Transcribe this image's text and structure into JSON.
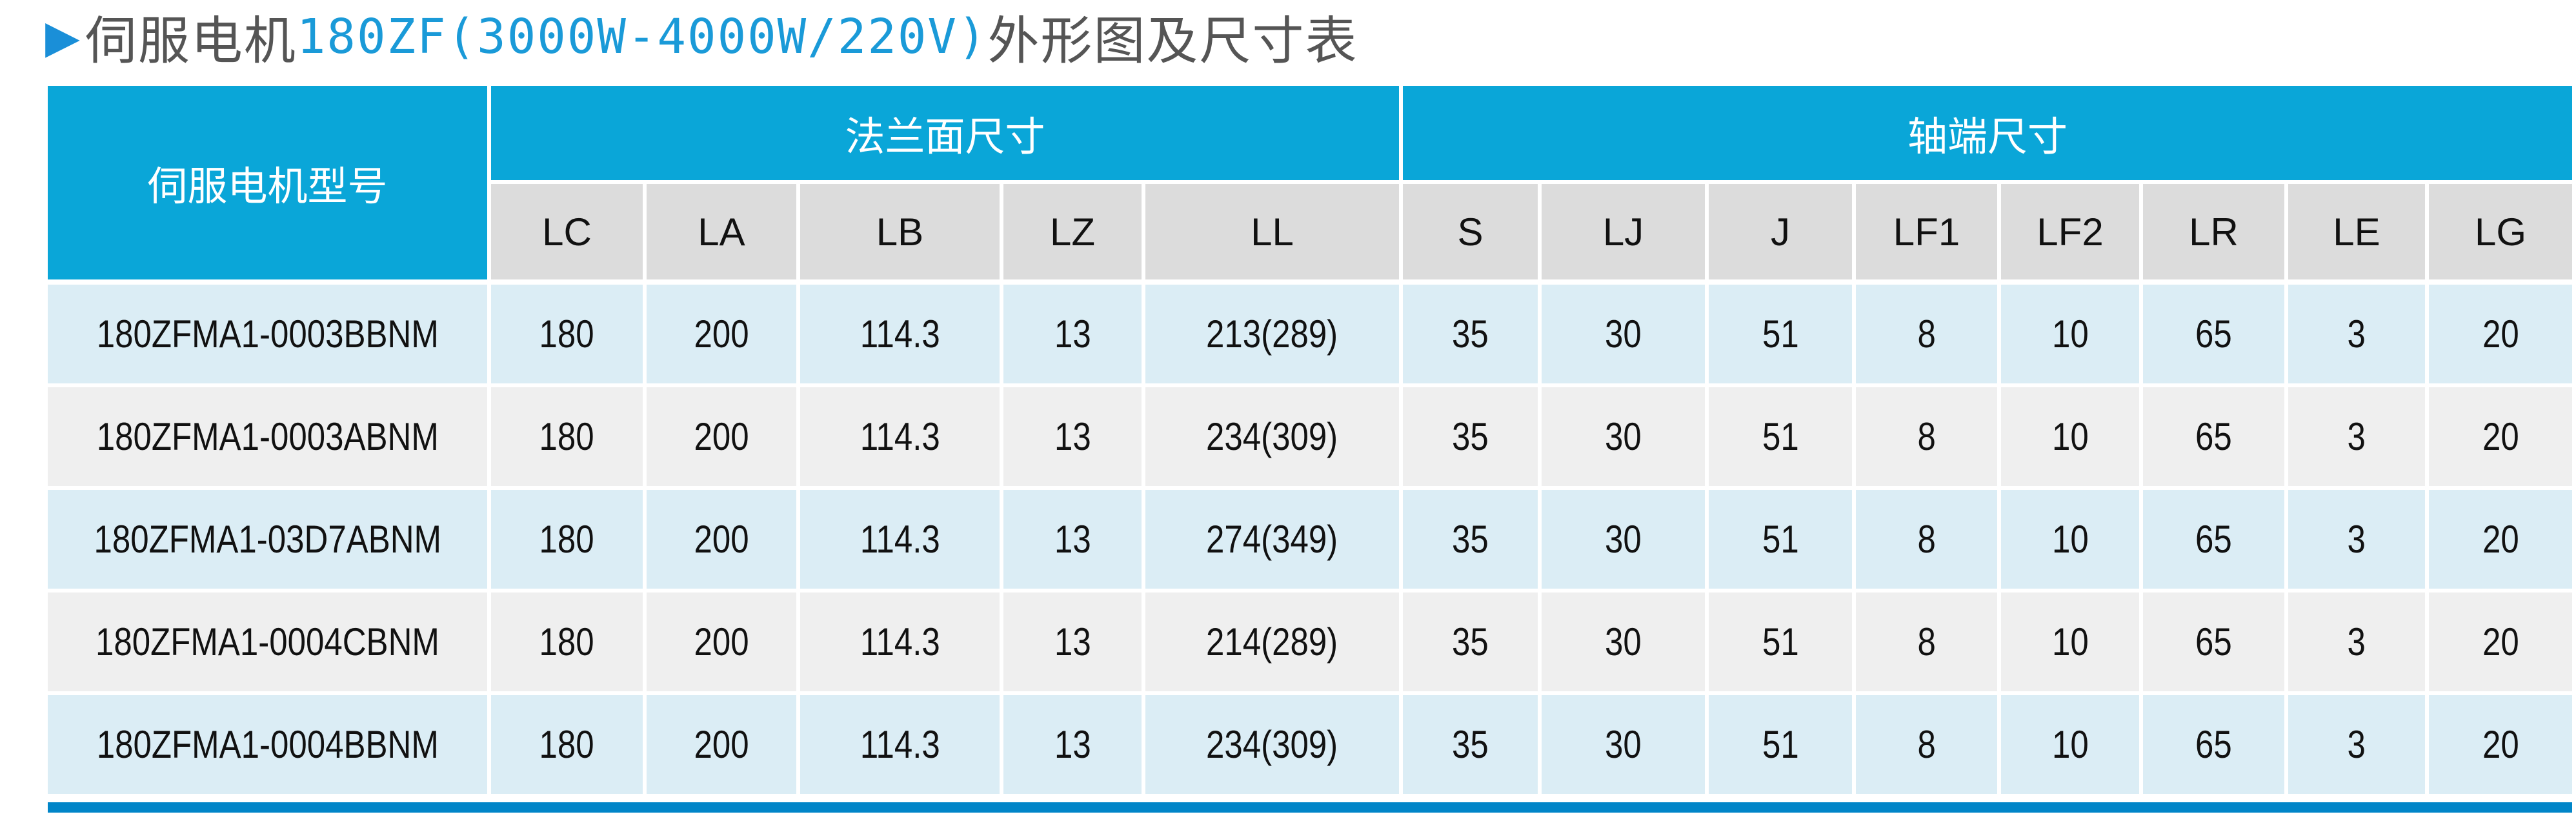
{
  "title": {
    "prefix": "伺服电机",
    "highlight": "180ZF(3000W-4000W/220V)",
    "suffix": "外形图及尺寸表"
  },
  "colors": {
    "header": "#0aa6d8",
    "subheader": "#dcdcdc",
    "row_blue": "#dbedf5",
    "row_grey": "#efefef",
    "bottom_bar": "#0085c8",
    "title_accent": "#1a9ad8"
  },
  "table": {
    "model_header": "伺服电机型号",
    "groups": [
      "法兰面尺寸",
      "轴端尺寸"
    ],
    "columns": [
      "LC",
      "LA",
      "LB",
      "LZ",
      "LL",
      "S",
      "LJ",
      "J",
      "LF1",
      "LF2",
      "LR",
      "LE",
      "LG"
    ],
    "rows": [
      [
        "180ZFMA1-0003BBNM",
        "180",
        "200",
        "114.3",
        "13",
        "213(289)",
        "35",
        "30",
        "51",
        "8",
        "10",
        "65",
        "3",
        "20"
      ],
      [
        "180ZFMA1-0003ABNM",
        "180",
        "200",
        "114.3",
        "13",
        "234(309)",
        "35",
        "30",
        "51",
        "8",
        "10",
        "65",
        "3",
        "20"
      ],
      [
        "180ZFMA1-03D7ABNM",
        "180",
        "200",
        "114.3",
        "13",
        "274(349)",
        "35",
        "30",
        "51",
        "8",
        "10",
        "65",
        "3",
        "20"
      ],
      [
        "180ZFMA1-0004CBNM",
        "180",
        "200",
        "114.3",
        "13",
        "214(289)",
        "35",
        "30",
        "51",
        "8",
        "10",
        "65",
        "3",
        "20"
      ],
      [
        "180ZFMA1-0004BBNM",
        "180",
        "200",
        "114.3",
        "13",
        "234(309)",
        "35",
        "30",
        "51",
        "8",
        "10",
        "65",
        "3",
        "20"
      ]
    ]
  }
}
